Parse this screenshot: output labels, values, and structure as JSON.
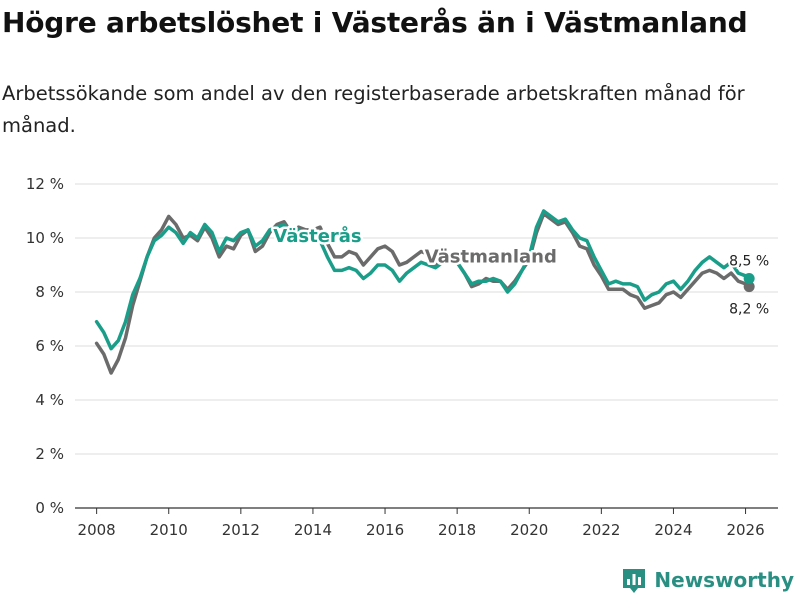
{
  "header": {
    "title": "Högre arbetslöshet i Västerås än i Västmanland",
    "subtitle": "Arbetssökande som andel av den registerbaserade arbetskraften månad för månad."
  },
  "brand": {
    "name": "Newsworthy",
    "icon": "bar-chart-logo-icon",
    "color": "#2a8f83"
  },
  "chart_data": {
    "type": "line",
    "title": "Högre arbetslöshet i Västerås än i Västmanland",
    "subtitle": "Arbetssökande som andel av den registerbaserade arbetskraften månad för månad.",
    "xlabel": "",
    "ylabel": "",
    "xlim": [
      2007.4,
      2026.9
    ],
    "ylim": [
      0,
      12
    ],
    "x_ticks": [
      2008,
      2010,
      2012,
      2014,
      2016,
      2018,
      2020,
      2022,
      2024,
      2026
    ],
    "x_tick_labels": [
      "2008",
      "2010",
      "2012",
      "2014",
      "2016",
      "2018",
      "2020",
      "2022",
      "2024",
      "2026"
    ],
    "y_ticks": [
      0,
      2,
      4,
      6,
      8,
      10,
      12
    ],
    "y_tick_labels": [
      "0 %",
      "2 %",
      "4 %",
      "6 %",
      "8 %",
      "10 %",
      "12 %"
    ],
    "grid": true,
    "series": [
      {
        "name": "Västmanland",
        "color": "#6b6b6b",
        "label_text": "Västmanland",
        "label_x": 2017.1,
        "label_y": 9.1,
        "end_label": "8,2 %",
        "end_value": 8.2,
        "points": [
          [
            2008.0,
            6.1
          ],
          [
            2008.2,
            5.7
          ],
          [
            2008.4,
            5.0
          ],
          [
            2008.6,
            5.5
          ],
          [
            2008.8,
            6.3
          ],
          [
            2009.0,
            7.5
          ],
          [
            2009.2,
            8.4
          ],
          [
            2009.4,
            9.3
          ],
          [
            2009.6,
            10.0
          ],
          [
            2009.8,
            10.3
          ],
          [
            2010.0,
            10.8
          ],
          [
            2010.2,
            10.5
          ],
          [
            2010.4,
            10.0
          ],
          [
            2010.6,
            10.1
          ],
          [
            2010.8,
            9.9
          ],
          [
            2011.0,
            10.4
          ],
          [
            2011.2,
            10.0
          ],
          [
            2011.4,
            9.3
          ],
          [
            2011.6,
            9.7
          ],
          [
            2011.8,
            9.6
          ],
          [
            2012.0,
            10.1
          ],
          [
            2012.2,
            10.3
          ],
          [
            2012.4,
            9.5
          ],
          [
            2012.6,
            9.7
          ],
          [
            2012.8,
            10.2
          ],
          [
            2013.0,
            10.5
          ],
          [
            2013.2,
            10.6
          ],
          [
            2013.4,
            10.2
          ],
          [
            2013.6,
            10.4
          ],
          [
            2013.8,
            10.3
          ],
          [
            2014.0,
            10.3
          ],
          [
            2014.2,
            10.4
          ],
          [
            2014.4,
            9.8
          ],
          [
            2014.6,
            9.3
          ],
          [
            2014.8,
            9.3
          ],
          [
            2015.0,
            9.5
          ],
          [
            2015.2,
            9.4
          ],
          [
            2015.4,
            9.0
          ],
          [
            2015.6,
            9.3
          ],
          [
            2015.8,
            9.6
          ],
          [
            2016.0,
            9.7
          ],
          [
            2016.2,
            9.5
          ],
          [
            2016.4,
            9.0
          ],
          [
            2016.6,
            9.1
          ],
          [
            2016.8,
            9.3
          ],
          [
            2017.0,
            9.5
          ],
          [
            2017.2,
            9.4
          ],
          [
            2017.4,
            9.0
          ],
          [
            2017.6,
            9.1
          ],
          [
            2017.8,
            9.2
          ],
          [
            2018.0,
            9.1
          ],
          [
            2018.2,
            8.7
          ],
          [
            2018.4,
            8.2
          ],
          [
            2018.6,
            8.3
          ],
          [
            2018.8,
            8.5
          ],
          [
            2019.0,
            8.4
          ],
          [
            2019.2,
            8.4
          ],
          [
            2019.4,
            8.1
          ],
          [
            2019.6,
            8.4
          ],
          [
            2019.8,
            8.8
          ],
          [
            2020.0,
            9.2
          ],
          [
            2020.2,
            10.2
          ],
          [
            2020.4,
            10.9
          ],
          [
            2020.6,
            10.7
          ],
          [
            2020.8,
            10.5
          ],
          [
            2021.0,
            10.6
          ],
          [
            2021.2,
            10.2
          ],
          [
            2021.4,
            9.7
          ],
          [
            2021.6,
            9.6
          ],
          [
            2021.8,
            9.0
          ],
          [
            2022.0,
            8.6
          ],
          [
            2022.2,
            8.1
          ],
          [
            2022.4,
            8.1
          ],
          [
            2022.6,
            8.1
          ],
          [
            2022.8,
            7.9
          ],
          [
            2023.0,
            7.8
          ],
          [
            2023.2,
            7.4
          ],
          [
            2023.4,
            7.5
          ],
          [
            2023.6,
            7.6
          ],
          [
            2023.8,
            7.9
          ],
          [
            2024.0,
            8.0
          ],
          [
            2024.2,
            7.8
          ],
          [
            2024.4,
            8.1
          ],
          [
            2024.6,
            8.4
          ],
          [
            2024.8,
            8.7
          ],
          [
            2025.0,
            8.8
          ],
          [
            2025.2,
            8.7
          ],
          [
            2025.4,
            8.5
          ],
          [
            2025.6,
            8.7
          ],
          [
            2025.8,
            8.4
          ],
          [
            2026.0,
            8.3
          ],
          [
            2026.1,
            8.2
          ]
        ]
      },
      {
        "name": "Västerås",
        "color": "#1a9e8a",
        "label_text": "Västerås",
        "label_x": 2012.9,
        "label_y": 9.85,
        "end_label": "8,5 %",
        "end_value": 8.5,
        "points": [
          [
            2008.0,
            6.9
          ],
          [
            2008.2,
            6.5
          ],
          [
            2008.4,
            5.9
          ],
          [
            2008.6,
            6.2
          ],
          [
            2008.8,
            6.9
          ],
          [
            2009.0,
            7.9
          ],
          [
            2009.2,
            8.5
          ],
          [
            2009.4,
            9.3
          ],
          [
            2009.6,
            9.9
          ],
          [
            2009.8,
            10.1
          ],
          [
            2010.0,
            10.4
          ],
          [
            2010.2,
            10.2
          ],
          [
            2010.4,
            9.8
          ],
          [
            2010.6,
            10.2
          ],
          [
            2010.8,
            10.0
          ],
          [
            2011.0,
            10.5
          ],
          [
            2011.2,
            10.2
          ],
          [
            2011.4,
            9.5
          ],
          [
            2011.6,
            10.0
          ],
          [
            2011.8,
            9.9
          ],
          [
            2012.0,
            10.2
          ],
          [
            2012.2,
            10.3
          ],
          [
            2012.4,
            9.7
          ],
          [
            2012.6,
            9.9
          ],
          [
            2012.8,
            10.3
          ],
          [
            2013.0,
            10.4
          ],
          [
            2013.2,
            10.5
          ],
          [
            2013.4,
            10.1
          ],
          [
            2013.6,
            10.3
          ],
          [
            2013.8,
            10.2
          ],
          [
            2014.0,
            10.1
          ],
          [
            2014.2,
            9.9
          ],
          [
            2014.4,
            9.3
          ],
          [
            2014.6,
            8.8
          ],
          [
            2014.8,
            8.8
          ],
          [
            2015.0,
            8.9
          ],
          [
            2015.2,
            8.8
          ],
          [
            2015.4,
            8.5
          ],
          [
            2015.6,
            8.7
          ],
          [
            2015.8,
            9.0
          ],
          [
            2016.0,
            9.0
          ],
          [
            2016.2,
            8.8
          ],
          [
            2016.4,
            8.4
          ],
          [
            2016.6,
            8.7
          ],
          [
            2016.8,
            8.9
          ],
          [
            2017.0,
            9.1
          ],
          [
            2017.2,
            9.0
          ],
          [
            2017.4,
            8.9
          ],
          [
            2017.6,
            9.1
          ],
          [
            2017.8,
            9.2
          ],
          [
            2018.0,
            9.1
          ],
          [
            2018.2,
            8.7
          ],
          [
            2018.4,
            8.3
          ],
          [
            2018.6,
            8.4
          ],
          [
            2018.8,
            8.4
          ],
          [
            2019.0,
            8.5
          ],
          [
            2019.2,
            8.4
          ],
          [
            2019.4,
            8.0
          ],
          [
            2019.6,
            8.3
          ],
          [
            2019.8,
            8.8
          ],
          [
            2020.0,
            9.3
          ],
          [
            2020.2,
            10.4
          ],
          [
            2020.4,
            11.0
          ],
          [
            2020.6,
            10.8
          ],
          [
            2020.8,
            10.6
          ],
          [
            2021.0,
            10.7
          ],
          [
            2021.2,
            10.3
          ],
          [
            2021.4,
            10.0
          ],
          [
            2021.6,
            9.9
          ],
          [
            2021.8,
            9.3
          ],
          [
            2022.0,
            8.8
          ],
          [
            2022.2,
            8.3
          ],
          [
            2022.4,
            8.4
          ],
          [
            2022.6,
            8.3
          ],
          [
            2022.8,
            8.3
          ],
          [
            2023.0,
            8.2
          ],
          [
            2023.2,
            7.7
          ],
          [
            2023.4,
            7.9
          ],
          [
            2023.6,
            8.0
          ],
          [
            2023.8,
            8.3
          ],
          [
            2024.0,
            8.4
          ],
          [
            2024.2,
            8.1
          ],
          [
            2024.4,
            8.4
          ],
          [
            2024.6,
            8.8
          ],
          [
            2024.8,
            9.1
          ],
          [
            2025.0,
            9.3
          ],
          [
            2025.2,
            9.1
          ],
          [
            2025.4,
            8.9
          ],
          [
            2025.6,
            9.1
          ],
          [
            2025.8,
            8.7
          ],
          [
            2026.0,
            8.6
          ],
          [
            2026.1,
            8.5
          ]
        ]
      }
    ]
  }
}
